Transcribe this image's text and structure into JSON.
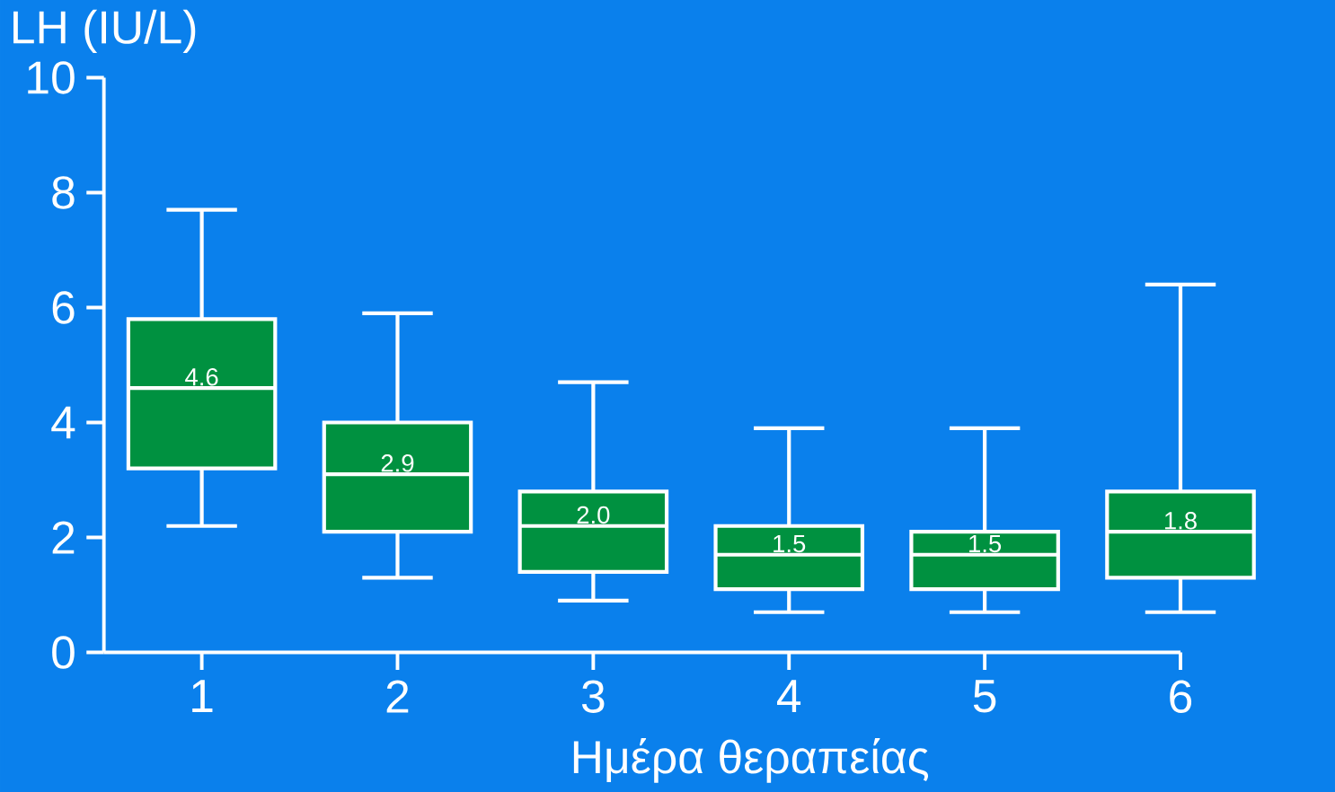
{
  "chart_data": {
    "type": "box",
    "xlabel": "Ημέρα θεραπείας",
    "ylabel": "LH (IU/L)",
    "categories": [
      "1",
      "2",
      "3",
      "4",
      "5",
      "6"
    ],
    "boxes": [
      {
        "low": 2.2,
        "q1": 3.2,
        "median": 4.6,
        "q3": 5.8,
        "high": 7.7
      },
      {
        "low": 1.3,
        "q1": 2.1,
        "median": 3.1,
        "q3": 4.0,
        "high": 5.9
      },
      {
        "low": 0.9,
        "q1": 1.4,
        "median": 2.2,
        "q3": 2.8,
        "high": 4.7
      },
      {
        "low": 0.7,
        "q1": 1.1,
        "median": 1.7,
        "q3": 2.2,
        "high": 3.9
      },
      {
        "low": 0.7,
        "q1": 1.1,
        "median": 1.7,
        "q3": 2.1,
        "high": 3.9
      },
      {
        "low": 0.7,
        "q1": 1.3,
        "median": 2.1,
        "q3": 2.8,
        "high": 6.4
      }
    ],
    "value_labels": [
      "4.6",
      "2.9",
      "2.0",
      "1.5",
      "1.5",
      "1.8"
    ],
    "color": "#009140",
    "ylim": [
      0,
      10
    ],
    "yticks": [
      0,
      2,
      4,
      6,
      8,
      10
    ]
  }
}
